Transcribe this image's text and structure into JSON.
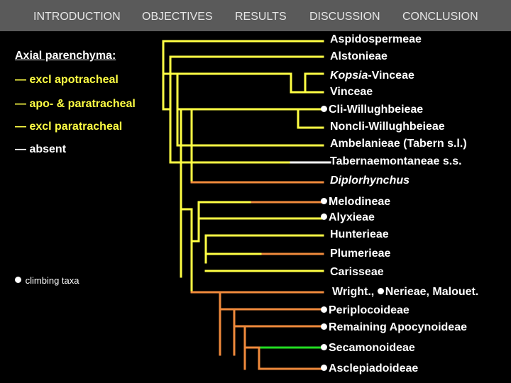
{
  "nav": {
    "items": [
      "INTRODUCTION",
      "OBJECTIVES",
      "RESULTS",
      "DISCUSSION",
      "CONCLUSION"
    ]
  },
  "legend": {
    "title": "Axial parenchyma:",
    "items": [
      {
        "label": "— excl apotracheal",
        "color": "#ffff44"
      },
      {
        "label": "— apo- & paratracheal",
        "color": "#ffff44"
      },
      {
        "label": "— excl paratracheal",
        "color": "#ffff44"
      },
      {
        "label": "— absent",
        "color": "#ffffff"
      }
    ],
    "climbing_label": "climbing taxa"
  },
  "taxa": [
    {
      "label": "Aspidospermeae",
      "climbing": false,
      "italic": false
    },
    {
      "label": "Alstonieae",
      "climbing": false,
      "italic": false
    },
    {
      "label": "Kopsia-Vinceae",
      "climbing": false,
      "italic": false,
      "italic_part": "Kopsia",
      "rest": "-Vinceae"
    },
    {
      "label": "Vinceae",
      "climbing": false,
      "italic": false
    },
    {
      "label": "Cli-Willughbeieae",
      "climbing": true,
      "italic": false
    },
    {
      "label": "Noncli-Willughbeieae",
      "climbing": false,
      "italic": false
    },
    {
      "label": "Ambelanieae (Tabern s.l.)",
      "climbing": false,
      "italic": false
    },
    {
      "label": "Tabernaemontaneae s.s.",
      "climbing": false,
      "italic": false
    },
    {
      "label": "Diplorhynchus",
      "climbing": false,
      "italic": true
    },
    {
      "label": "Melodineae",
      "climbing": true,
      "italic": false
    },
    {
      "label": "Alyxieae",
      "climbing": true,
      "italic": false
    },
    {
      "label": "Hunterieae",
      "climbing": false,
      "italic": false
    },
    {
      "label": "Plumerieae",
      "climbing": false,
      "italic": false
    },
    {
      "label": "Carisseae",
      "climbing": false,
      "italic": false
    },
    {
      "label": "Wrightia-Nerieae-Malouetia",
      "climbing": true,
      "italic": false,
      "part1": "Wright., ",
      "part2": "Nerieae, Malouet."
    },
    {
      "label": "Periplocoideae",
      "climbing": true,
      "italic": false
    },
    {
      "label": "Remaining Apocynoideae",
      "climbing": true,
      "italic": false
    },
    {
      "label": "Secamonoideae",
      "climbing": true,
      "italic": false
    },
    {
      "label": "Asclepiadoideae",
      "climbing": true,
      "italic": false
    }
  ],
  "colors": {
    "yellow": "#ffff44",
    "orange": "#f08a3c",
    "white": "#ffffff",
    "green": "#22dd22",
    "navbar": "#5a5a5a"
  }
}
